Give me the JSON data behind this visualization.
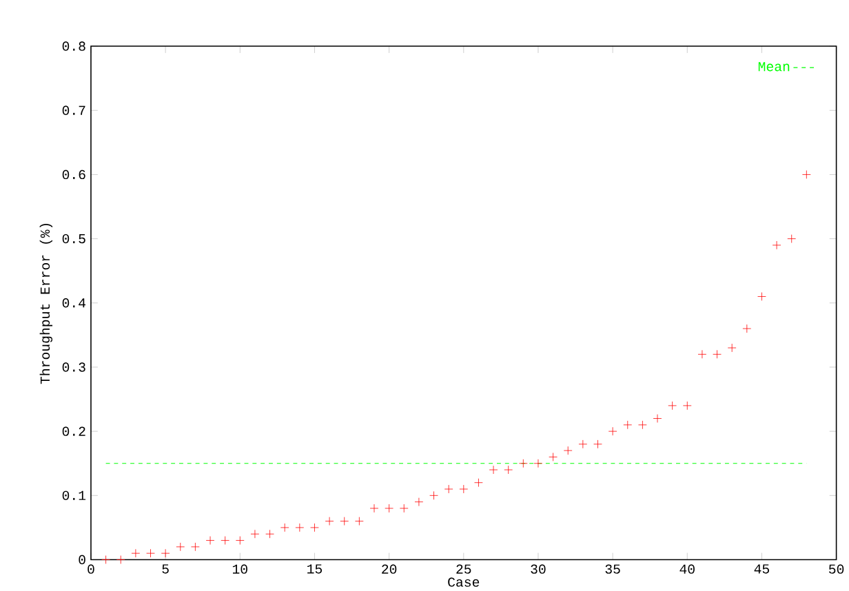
{
  "chart_data": {
    "type": "scatter",
    "xlabel": "Case",
    "ylabel": "Throughput Error (%)",
    "x": [
      1,
      2,
      3,
      4,
      5,
      6,
      7,
      8,
      9,
      10,
      11,
      12,
      13,
      14,
      15,
      16,
      17,
      18,
      19,
      20,
      21,
      22,
      23,
      24,
      25,
      26,
      27,
      28,
      29,
      30,
      31,
      32,
      33,
      34,
      35,
      36,
      37,
      38,
      39,
      40,
      41,
      42,
      43,
      44,
      45,
      46,
      47,
      48
    ],
    "series": [
      {
        "color": "#ff0000",
        "values": [
          0,
          0,
          0.01,
          0.01,
          0.01,
          0.02,
          0.02,
          0.03,
          0.03,
          0.03,
          0.04,
          0.04,
          0.05,
          0.05,
          0.05,
          0.06,
          0.06,
          0.06,
          0.08,
          0.08,
          0.08,
          0.09,
          0.1,
          0.11,
          0.11,
          0.12,
          0.14,
          0.14,
          0.15,
          0.15,
          0.16,
          0.17,
          0.18,
          0.18,
          0.2,
          0.21,
          0.21,
          0.22,
          0.24,
          0.24,
          0.32,
          0.32,
          0.33,
          0.36,
          0.41,
          0.49,
          0.5,
          0.6
        ]
      }
    ],
    "marker": "cross",
    "ref_lines": [
      {
        "axis": "y",
        "value": 0.15,
        "label": "Mean",
        "color": "#00ff00",
        "line_style": "dashed"
      }
    ],
    "legend": "top right",
    "xlim": [
      0,
      50
    ],
    "ylim": [
      0,
      0.8
    ],
    "xticks": [
      0,
      5,
      10,
      15,
      20,
      25,
      30,
      35,
      40,
      45,
      50
    ],
    "yticks": [
      0,
      0.1,
      0.2,
      0.3,
      0.4,
      0.5,
      0.6,
      0.7,
      0.8
    ]
  }
}
